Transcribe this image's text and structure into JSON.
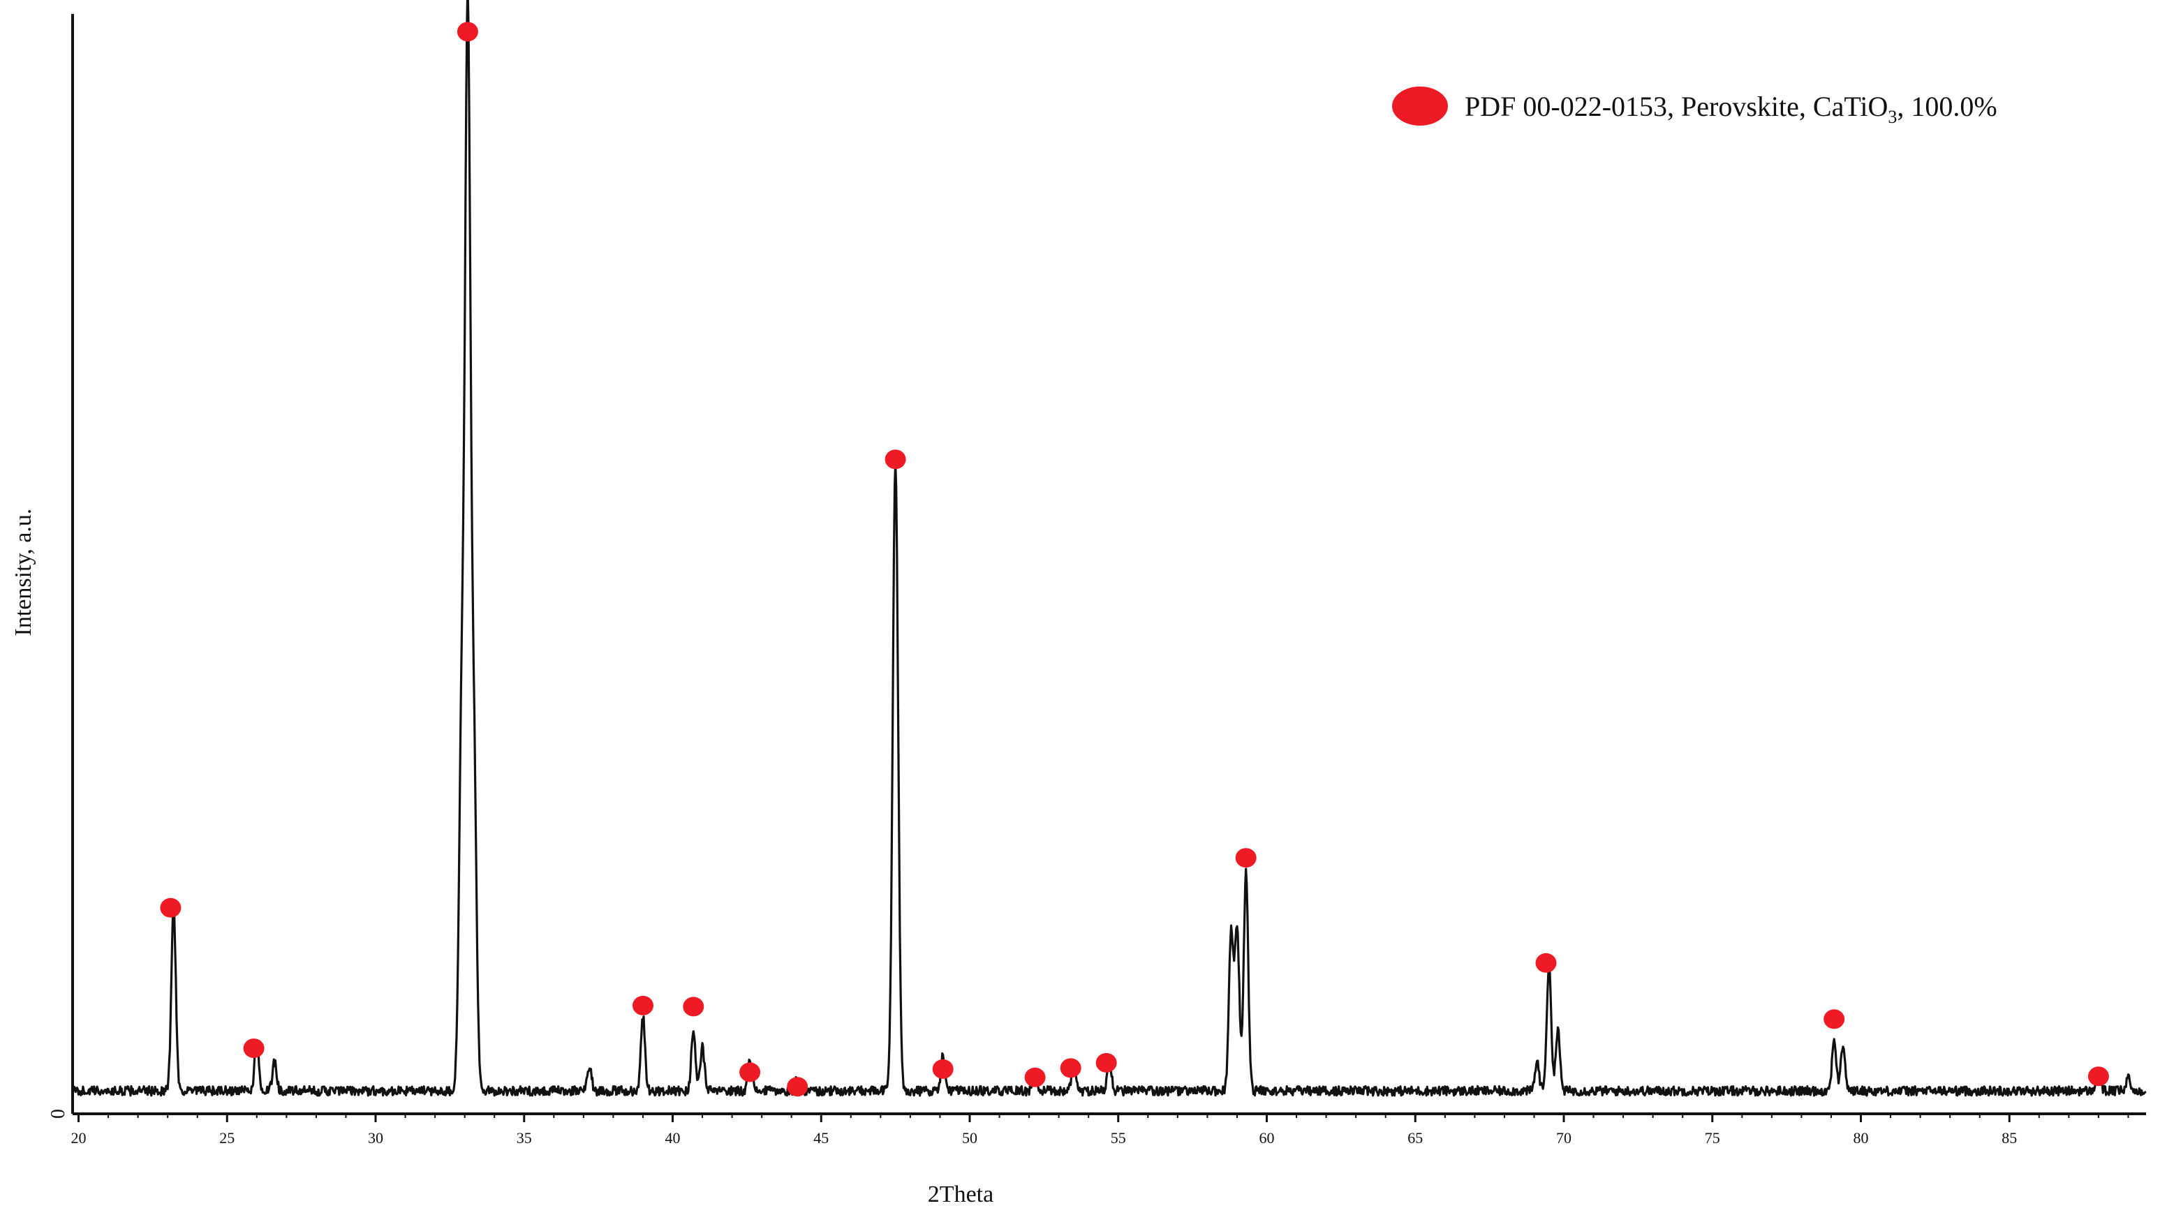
{
  "chart_data": {
    "type": "line",
    "title": "",
    "xlabel": "2Theta",
    "ylabel": "Intensity, a.u.",
    "xlim": [
      19.8,
      89.6
    ],
    "ylim": [
      0,
      1000
    ],
    "x_ticks": [
      20,
      25,
      30,
      35,
      40,
      45,
      50,
      55,
      60,
      65,
      70,
      75,
      80,
      85
    ],
    "x_tick_labels": [
      "20",
      "25",
      "30",
      "35",
      "40",
      "45",
      "50",
      "55",
      "60",
      "65",
      "70",
      "75",
      "80",
      "85"
    ],
    "y_tick_labels": [
      "0"
    ],
    "baseline": 22,
    "grid": false,
    "legend_position": "top-right",
    "series": [
      {
        "color": "#111111",
        "peaks": [
          {
            "x": 23.2,
            "y": 176
          },
          {
            "x": 26.0,
            "y": 50
          },
          {
            "x": 26.6,
            "y": 28
          },
          {
            "x": 32.9,
            "y": 350
          },
          {
            "x": 33.1,
            "y": 1000
          },
          {
            "x": 33.3,
            "y": 330
          },
          {
            "x": 37.2,
            "y": 25
          },
          {
            "x": 39.0,
            "y": 72
          },
          {
            "x": 40.7,
            "y": 58
          },
          {
            "x": 41.0,
            "y": 42
          },
          {
            "x": 42.6,
            "y": 32
          },
          {
            "x": 44.2,
            "y": 12
          },
          {
            "x": 47.5,
            "y": 604
          },
          {
            "x": 49.1,
            "y": 34
          },
          {
            "x": 52.2,
            "y": 14
          },
          {
            "x": 53.5,
            "y": 24
          },
          {
            "x": 54.7,
            "y": 30
          },
          {
            "x": 58.8,
            "y": 150
          },
          {
            "x": 59.0,
            "y": 158
          },
          {
            "x": 59.3,
            "y": 210
          },
          {
            "x": 69.1,
            "y": 28
          },
          {
            "x": 69.5,
            "y": 120
          },
          {
            "x": 69.8,
            "y": 58
          },
          {
            "x": 79.1,
            "y": 50
          },
          {
            "x": 79.4,
            "y": 45
          },
          {
            "x": 88.0,
            "y": 16
          },
          {
            "x": 89.0,
            "y": 12
          }
        ]
      }
    ],
    "markers": {
      "color": "#ee1b24",
      "shape": "circle",
      "points": [
        {
          "x": 23.1,
          "y": 198
        },
        {
          "x": 25.9,
          "y": 63
        },
        {
          "x": 33.1,
          "y": 1040
        },
        {
          "x": 39.0,
          "y": 104
        },
        {
          "x": 40.7,
          "y": 103
        },
        {
          "x": 42.6,
          "y": 40
        },
        {
          "x": 44.2,
          "y": 26
        },
        {
          "x": 47.5,
          "y": 629
        },
        {
          "x": 49.1,
          "y": 43
        },
        {
          "x": 52.2,
          "y": 35
        },
        {
          "x": 53.4,
          "y": 44
        },
        {
          "x": 54.6,
          "y": 49
        },
        {
          "x": 59.3,
          "y": 246
        },
        {
          "x": 69.4,
          "y": 145
        },
        {
          "x": 79.1,
          "y": 91
        },
        {
          "x": 88.0,
          "y": 36
        }
      ]
    },
    "legend": {
      "marker_color": "#ee1b24",
      "text_main": "PDF 00-022-0153, Perovskite, CaTiO",
      "text_subscript": "3",
      "text_tail": ", 100.0%"
    }
  }
}
